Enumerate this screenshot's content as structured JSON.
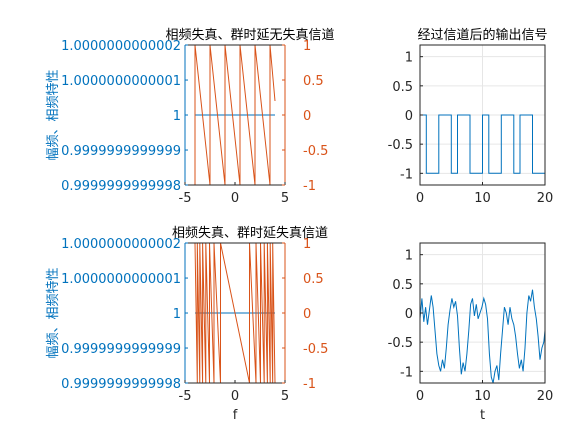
{
  "colors": {
    "left_axis": "#0072BD",
    "right_axis": "#D95319",
    "magnitude_line": "#0072BD",
    "phase_line": "#D95319",
    "output_line": "#0072BD",
    "axis_text": "#262626",
    "grid": "#e6e6e6",
    "box": "#262626"
  },
  "chart_data": [
    {
      "id": "top_left",
      "type": "line",
      "title": "相频失真、群时延无失真信道",
      "xlabel": "",
      "ylabel_left": "幅频、相频特性",
      "xlim": [
        -5,
        5
      ],
      "x_ticks": [
        "-5",
        "0",
        "5"
      ],
      "left_ylim": [
        0.9999999999998,
        1.0000000000002
      ],
      "left_ticks": [
        "1.0000000000002",
        "1.0000000000001",
        "1",
        "0.9999999999999",
        "0.9999999999998"
      ],
      "right_ylim": [
        -1,
        1
      ],
      "right_ticks": [
        "1",
        "0.5",
        "0",
        "-0.5",
        "-1"
      ],
      "grid": false,
      "series": [
        {
          "role": "magnitude",
          "axis": "left",
          "x": [
            -4,
            4
          ],
          "y": [
            1,
            1
          ]
        },
        {
          "role": "phase",
          "axis": "right",
          "x": [
            -4,
            -4,
            -2.5,
            -2.5,
            -1,
            -1,
            0.5,
            0.5,
            2,
            2,
            3.5,
            3.5,
            4
          ],
          "y": [
            -1,
            1,
            -1,
            1,
            -1,
            1,
            -1,
            1,
            -1,
            1,
            -1,
            1,
            0.2
          ]
        }
      ]
    },
    {
      "id": "top_right",
      "type": "line",
      "title": "经过信道后的输出信号",
      "xlim": [
        0,
        20
      ],
      "x_ticks": [
        "0",
        "10",
        "20"
      ],
      "ylim": [
        -1.2,
        1.2
      ],
      "y_ticks": [
        "1",
        "0.5",
        "0",
        "-0.5",
        "-1"
      ],
      "grid": true,
      "series": [
        {
          "x": [
            0,
            1,
            1,
            3,
            3,
            5,
            5,
            6,
            6,
            8,
            8,
            10,
            10,
            11,
            11,
            13,
            13,
            15,
            15,
            16,
            16,
            18,
            18,
            20
          ],
          "y": [
            0,
            0,
            -1,
            -1,
            0,
            0,
            -1,
            -1,
            0,
            0,
            -1,
            -1,
            0,
            0,
            -1,
            -1,
            0,
            0,
            -1,
            -1,
            0,
            0,
            -1,
            -1
          ]
        }
      ]
    },
    {
      "id": "bottom_left",
      "type": "line",
      "title": "相频失真、群时延失真信道",
      "xlabel": "f",
      "ylabel_left": "幅频、相频特性",
      "xlim": [
        -5,
        5
      ],
      "x_ticks": [
        "-5",
        "0",
        "5"
      ],
      "left_ylim": [
        0.9999999999998,
        1.0000000000002
      ],
      "left_ticks": [
        "1.0000000000002",
        "1.0000000000001",
        "1",
        "0.9999999999999",
        "0.9999999999998"
      ],
      "right_ylim": [
        -1,
        1
      ],
      "right_ticks": [
        "1",
        "0.5",
        "0",
        "-0.5",
        "-1"
      ],
      "grid": false,
      "series": [
        {
          "role": "magnitude",
          "axis": "left",
          "x": [
            -4,
            4
          ],
          "y": [
            1,
            1
          ]
        },
        {
          "role": "phase",
          "axis": "right",
          "description_free": true,
          "x": [
            -4.0,
            -3.77,
            -3.77,
            -3.52,
            -3.52,
            -3.24,
            -3.24,
            -2.92,
            -2.92,
            -2.55,
            -2.55,
            -2.1,
            -2.1,
            -1.45,
            -1.45,
            1.45,
            1.45,
            2.1,
            2.1,
            2.55,
            2.55,
            2.92,
            2.92,
            3.24,
            3.24,
            3.52,
            3.52,
            3.77,
            3.77,
            4.0
          ],
          "y": [
            1,
            -1,
            1,
            -1,
            1,
            -1,
            1,
            -1,
            1,
            -1,
            1,
            -1,
            1,
            -1,
            1,
            -1,
            1,
            -1,
            1,
            -1,
            1,
            -1,
            1,
            -1,
            1,
            -1,
            1,
            -1,
            1,
            -1
          ]
        }
      ]
    },
    {
      "id": "bottom_right",
      "type": "line",
      "title": "",
      "xlabel": "t",
      "xlim": [
        0,
        20
      ],
      "x_ticks": [
        "0",
        "10",
        "20"
      ],
      "ylim": [
        -1.2,
        1.2
      ],
      "y_ticks": [
        "1",
        "0.5",
        "0",
        "-0.5",
        "-1"
      ],
      "grid": true,
      "series": [
        {
          "x": [
            0,
            0.3,
            0.6,
            0.9,
            1.2,
            1.5,
            1.8,
            2.1,
            2.4,
            2.7,
            3.0,
            3.3,
            3.6,
            3.9,
            4.2,
            4.5,
            4.8,
            5.1,
            5.4,
            5.7,
            6.0,
            6.3,
            6.6,
            6.9,
            7.2,
            7.5,
            7.8,
            8.1,
            8.4,
            8.7,
            9.0,
            9.3,
            9.6,
            9.9,
            10.2,
            10.5,
            10.8,
            11.1,
            11.4,
            11.7,
            12.0,
            12.3,
            12.6,
            12.9,
            13.2,
            13.5,
            13.8,
            14.1,
            14.4,
            14.7,
            15.0,
            15.3,
            15.6,
            15.9,
            16.2,
            16.5,
            16.8,
            17.1,
            17.4,
            17.7,
            18.0,
            18.3,
            18.6,
            18.9,
            19.2,
            19.5,
            19.8,
            20.0
          ],
          "y": [
            -0.1,
            0.25,
            -0.15,
            0.1,
            -0.2,
            0.05,
            0.3,
            0.1,
            -0.3,
            -0.7,
            -0.9,
            -1.0,
            -0.8,
            -0.95,
            -0.6,
            -0.2,
            0.05,
            0.25,
            0.1,
            0.2,
            -0.05,
            -0.6,
            -1.05,
            -0.85,
            -1.0,
            -0.7,
            -0.3,
            0.15,
            0.25,
            -0.05,
            0.15,
            -0.1,
            0.0,
            0.1,
            0.25,
            0.15,
            -0.1,
            -0.7,
            -1.1,
            -1.2,
            -1.0,
            -0.9,
            -1.15,
            -0.7,
            -0.3,
            0.1,
            0.0,
            -0.2,
            0.1,
            -0.1,
            -0.2,
            -0.4,
            -0.7,
            -0.95,
            -0.8,
            -1.0,
            -0.6,
            0.0,
            0.3,
            0.2,
            0.4,
            0.1,
            -0.1,
            -0.4,
            -0.8,
            -0.6,
            -0.5,
            -0.3
          ]
        }
      ]
    }
  ]
}
